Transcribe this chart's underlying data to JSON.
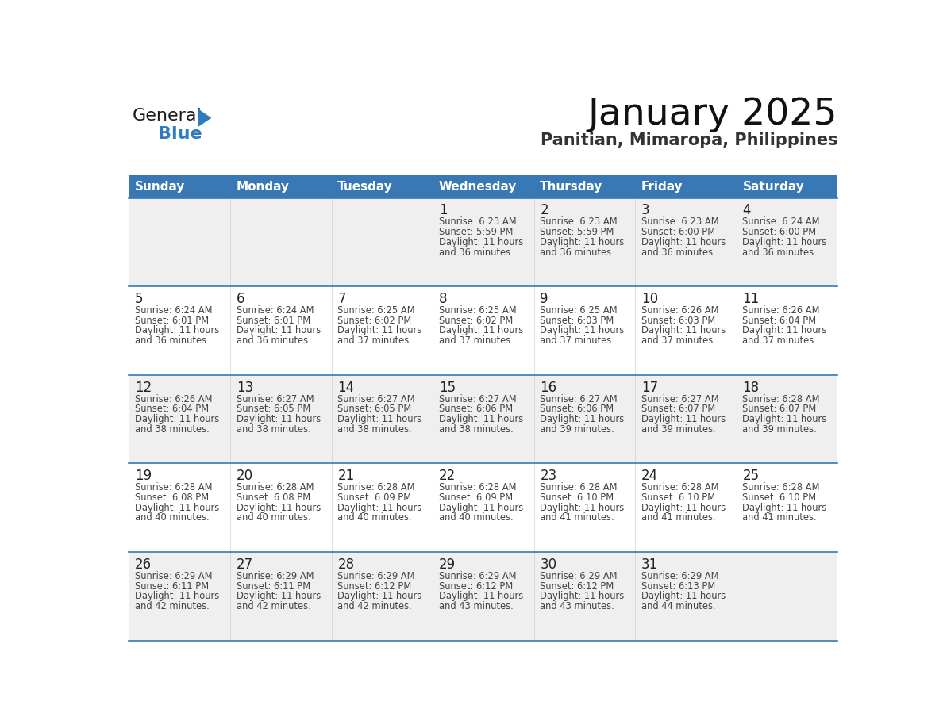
{
  "title": "January 2025",
  "subtitle": "Panitian, Mimaropa, Philippines",
  "header_bg_color": "#3878b4",
  "header_text_color": "#ffffff",
  "days_of_week": [
    "Sunday",
    "Monday",
    "Tuesday",
    "Wednesday",
    "Thursday",
    "Friday",
    "Saturday"
  ],
  "bg_color": "#ffffff",
  "cell_bg_light": "#efefef",
  "cell_bg_white": "#ffffff",
  "row_line_color": "#3878b4",
  "text_color": "#444444",
  "day_num_color": "#222222",
  "logo_black": "#1a1a1a",
  "logo_blue": "#2e7bbf",
  "calendar_data": [
    [
      {
        "day": 0,
        "sunrise": "",
        "sunset": "",
        "daylight_hours": "",
        "daylight_min": ""
      },
      {
        "day": 0,
        "sunrise": "",
        "sunset": "",
        "daylight_hours": "",
        "daylight_min": ""
      },
      {
        "day": 0,
        "sunrise": "",
        "sunset": "",
        "daylight_hours": "",
        "daylight_min": ""
      },
      {
        "day": 1,
        "sunrise": "6:23 AM",
        "sunset": "5:59 PM",
        "daylight_hours": "11 hours",
        "daylight_min": "and 36 minutes."
      },
      {
        "day": 2,
        "sunrise": "6:23 AM",
        "sunset": "5:59 PM",
        "daylight_hours": "11 hours",
        "daylight_min": "and 36 minutes."
      },
      {
        "day": 3,
        "sunrise": "6:23 AM",
        "sunset": "6:00 PM",
        "daylight_hours": "11 hours",
        "daylight_min": "and 36 minutes."
      },
      {
        "day": 4,
        "sunrise": "6:24 AM",
        "sunset": "6:00 PM",
        "daylight_hours": "11 hours",
        "daylight_min": "and 36 minutes."
      }
    ],
    [
      {
        "day": 5,
        "sunrise": "6:24 AM",
        "sunset": "6:01 PM",
        "daylight_hours": "11 hours",
        "daylight_min": "and 36 minutes."
      },
      {
        "day": 6,
        "sunrise": "6:24 AM",
        "sunset": "6:01 PM",
        "daylight_hours": "11 hours",
        "daylight_min": "and 36 minutes."
      },
      {
        "day": 7,
        "sunrise": "6:25 AM",
        "sunset": "6:02 PM",
        "daylight_hours": "11 hours",
        "daylight_min": "and 37 minutes."
      },
      {
        "day": 8,
        "sunrise": "6:25 AM",
        "sunset": "6:02 PM",
        "daylight_hours": "11 hours",
        "daylight_min": "and 37 minutes."
      },
      {
        "day": 9,
        "sunrise": "6:25 AM",
        "sunset": "6:03 PM",
        "daylight_hours": "11 hours",
        "daylight_min": "and 37 minutes."
      },
      {
        "day": 10,
        "sunrise": "6:26 AM",
        "sunset": "6:03 PM",
        "daylight_hours": "11 hours",
        "daylight_min": "and 37 minutes."
      },
      {
        "day": 11,
        "sunrise": "6:26 AM",
        "sunset": "6:04 PM",
        "daylight_hours": "11 hours",
        "daylight_min": "and 37 minutes."
      }
    ],
    [
      {
        "day": 12,
        "sunrise": "6:26 AM",
        "sunset": "6:04 PM",
        "daylight_hours": "11 hours",
        "daylight_min": "and 38 minutes."
      },
      {
        "day": 13,
        "sunrise": "6:27 AM",
        "sunset": "6:05 PM",
        "daylight_hours": "11 hours",
        "daylight_min": "and 38 minutes."
      },
      {
        "day": 14,
        "sunrise": "6:27 AM",
        "sunset": "6:05 PM",
        "daylight_hours": "11 hours",
        "daylight_min": "and 38 minutes."
      },
      {
        "day": 15,
        "sunrise": "6:27 AM",
        "sunset": "6:06 PM",
        "daylight_hours": "11 hours",
        "daylight_min": "and 38 minutes."
      },
      {
        "day": 16,
        "sunrise": "6:27 AM",
        "sunset": "6:06 PM",
        "daylight_hours": "11 hours",
        "daylight_min": "and 39 minutes."
      },
      {
        "day": 17,
        "sunrise": "6:27 AM",
        "sunset": "6:07 PM",
        "daylight_hours": "11 hours",
        "daylight_min": "and 39 minutes."
      },
      {
        "day": 18,
        "sunrise": "6:28 AM",
        "sunset": "6:07 PM",
        "daylight_hours": "11 hours",
        "daylight_min": "and 39 minutes."
      }
    ],
    [
      {
        "day": 19,
        "sunrise": "6:28 AM",
        "sunset": "6:08 PM",
        "daylight_hours": "11 hours",
        "daylight_min": "and 40 minutes."
      },
      {
        "day": 20,
        "sunrise": "6:28 AM",
        "sunset": "6:08 PM",
        "daylight_hours": "11 hours",
        "daylight_min": "and 40 minutes."
      },
      {
        "day": 21,
        "sunrise": "6:28 AM",
        "sunset": "6:09 PM",
        "daylight_hours": "11 hours",
        "daylight_min": "and 40 minutes."
      },
      {
        "day": 22,
        "sunrise": "6:28 AM",
        "sunset": "6:09 PM",
        "daylight_hours": "11 hours",
        "daylight_min": "and 40 minutes."
      },
      {
        "day": 23,
        "sunrise": "6:28 AM",
        "sunset": "6:10 PM",
        "daylight_hours": "11 hours",
        "daylight_min": "and 41 minutes."
      },
      {
        "day": 24,
        "sunrise": "6:28 AM",
        "sunset": "6:10 PM",
        "daylight_hours": "11 hours",
        "daylight_min": "and 41 minutes."
      },
      {
        "day": 25,
        "sunrise": "6:28 AM",
        "sunset": "6:10 PM",
        "daylight_hours": "11 hours",
        "daylight_min": "and 41 minutes."
      }
    ],
    [
      {
        "day": 26,
        "sunrise": "6:29 AM",
        "sunset": "6:11 PM",
        "daylight_hours": "11 hours",
        "daylight_min": "and 42 minutes."
      },
      {
        "day": 27,
        "sunrise": "6:29 AM",
        "sunset": "6:11 PM",
        "daylight_hours": "11 hours",
        "daylight_min": "and 42 minutes."
      },
      {
        "day": 28,
        "sunrise": "6:29 AM",
        "sunset": "6:12 PM",
        "daylight_hours": "11 hours",
        "daylight_min": "and 42 minutes."
      },
      {
        "day": 29,
        "sunrise": "6:29 AM",
        "sunset": "6:12 PM",
        "daylight_hours": "11 hours",
        "daylight_min": "and 43 minutes."
      },
      {
        "day": 30,
        "sunrise": "6:29 AM",
        "sunset": "6:12 PM",
        "daylight_hours": "11 hours",
        "daylight_min": "and 43 minutes."
      },
      {
        "day": 31,
        "sunrise": "6:29 AM",
        "sunset": "6:13 PM",
        "daylight_hours": "11 hours",
        "daylight_min": "and 44 minutes."
      },
      {
        "day": 0,
        "sunrise": "",
        "sunset": "",
        "daylight_hours": "",
        "daylight_min": ""
      }
    ]
  ]
}
